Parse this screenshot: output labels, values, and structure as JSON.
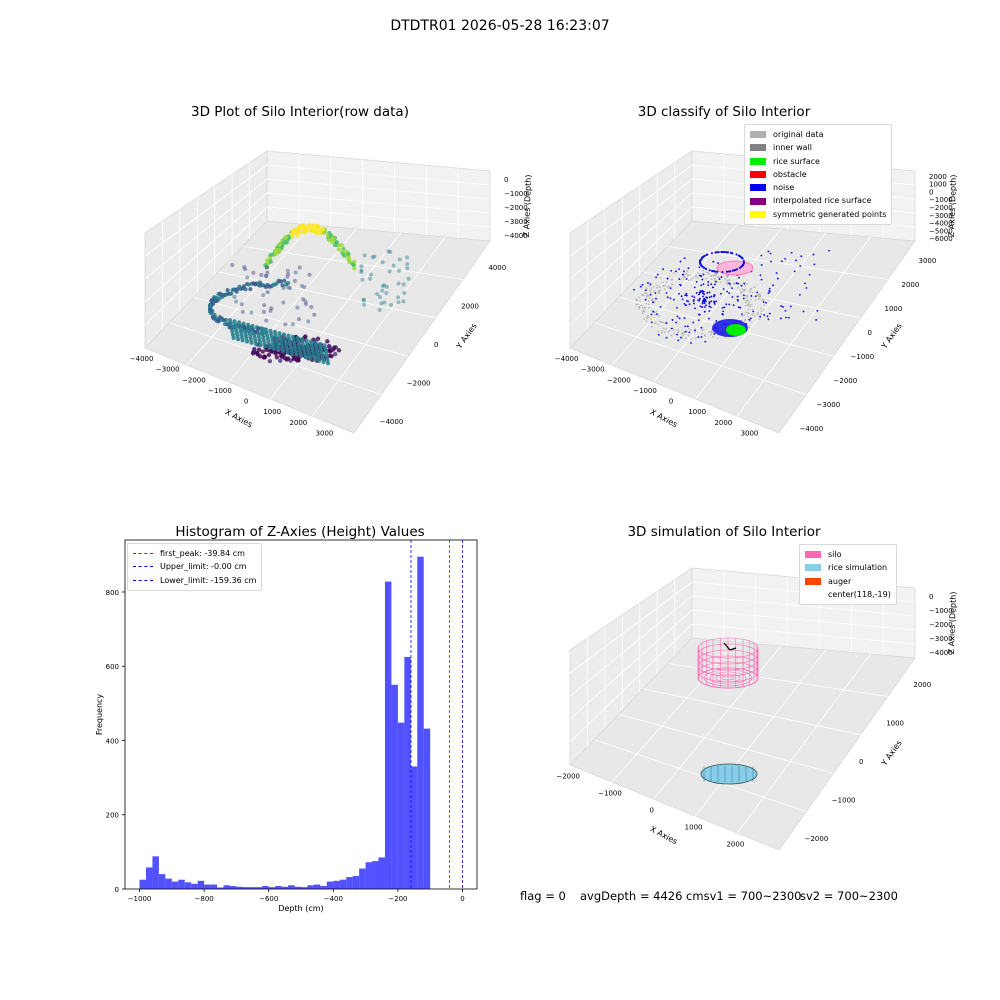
{
  "suptitle": "DTDTR01 2026-05-28 16:23:07",
  "panels": {
    "raw": {
      "title": "3D Plot of Silo Interior(row data)",
      "xlabel": "X Axies",
      "ylabel": "Y Axies",
      "zlabel": "Z Axies (Depth)",
      "xticks": [
        "−4000",
        "−3000",
        "−2000",
        "−1000",
        "0",
        "1000",
        "2000",
        "3000"
      ],
      "yticks": [
        "4000",
        "2000",
        "0",
        "−2000",
        "−4000"
      ],
      "zticks": [
        "0",
        "−1000",
        "−2000",
        "−3000",
        "−4000"
      ]
    },
    "classify": {
      "title": "3D classify of Silo Interior",
      "xlabel": "X Axies",
      "ylabel": "Y Axies",
      "zlabel": "Z Axies (Depth)",
      "xticks": [
        "−4000",
        "−3000",
        "−2000",
        "−1000",
        "0",
        "1000",
        "2000",
        "3000"
      ],
      "yticks": [
        "3000",
        "2000",
        "1000",
        "0",
        "−1000",
        "−2000",
        "−3000",
        "−4000"
      ],
      "zticks": [
        "2000",
        "1000",
        "0",
        "−1000",
        "−2000",
        "−3000",
        "−4000",
        "−5000",
        "−6000"
      ],
      "legend": [
        {
          "label": "original data",
          "color": "#b0b0b0"
        },
        {
          "label": "inner wall",
          "color": "#808080"
        },
        {
          "label": "rice surface",
          "color": "#00ee00"
        },
        {
          "label": "obstacle",
          "color": "#ff0000"
        },
        {
          "label": "noise",
          "color": "#0000ee"
        },
        {
          "label": "interpolated rice surface",
          "color": "#800080"
        },
        {
          "label": "symmetric generated points",
          "color": "#ffff00"
        }
      ]
    },
    "simulation": {
      "title": "3D simulation of Silo Interior",
      "xlabel": "X Axies",
      "ylabel": "Y Axies",
      "zlabel": "Z Axies (Depth)",
      "xticks": [
        "−2000",
        "−1000",
        "0",
        "1000",
        "2000"
      ],
      "yticks": [
        "2000",
        "1000",
        "0",
        "−1000",
        "−2000"
      ],
      "zticks": [
        "0",
        "−1000",
        "−2000",
        "−3000",
        "−4000"
      ],
      "legend": [
        {
          "label": "silo",
          "color": "#ff69b4"
        },
        {
          "label": "rice simulation",
          "color": "#87ceeb"
        },
        {
          "label": "auger",
          "color": "#ff4500"
        },
        {
          "label": "center(118,-19)",
          "color": "transparent"
        }
      ]
    }
  },
  "chart_data": {
    "type": "bar",
    "title": "Histogram of Z-Axies (Height) Values",
    "xlabel": "Depth (cm)",
    "ylabel": "Frequency",
    "xlim": [
      -1045,
      45
    ],
    "ylim": [
      0,
      940
    ],
    "xticks": [
      -1000,
      -800,
      -600,
      -400,
      -200,
      0
    ],
    "xtick_labels": [
      "−1000",
      "−800",
      "−600",
      "−400",
      "−200",
      "0"
    ],
    "yticks": [
      0,
      200,
      400,
      600,
      800
    ],
    "bin_start": -1000,
    "bin_width": 20,
    "values": [
      25,
      58,
      88,
      40,
      28,
      20,
      25,
      18,
      14,
      22,
      12,
      12,
      4,
      10,
      8,
      6,
      5,
      5,
      5,
      8,
      5,
      8,
      6,
      10,
      6,
      5,
      10,
      12,
      8,
      20,
      22,
      25,
      32,
      35,
      55,
      72,
      75,
      85,
      828,
      550,
      448,
      625,
      330,
      895,
      432
    ],
    "bar_color": "#3333ff",
    "lines": [
      {
        "label": "first_peak: -39.84 cm",
        "x": -39.84,
        "color": "#ff0000"
      },
      {
        "label": "Upper_limit: -0.00 cm",
        "x": 0,
        "color": "#0000ff"
      },
      {
        "label": "Lower_limit: -159.36 cm",
        "x": -159.36,
        "color": "#0000ff"
      }
    ]
  },
  "status": {
    "flag": "flag = 0",
    "avg": "avgDepth = 4426 cmsv1 = 700~2300",
    "sv2": "sv2 = 700~2300"
  }
}
